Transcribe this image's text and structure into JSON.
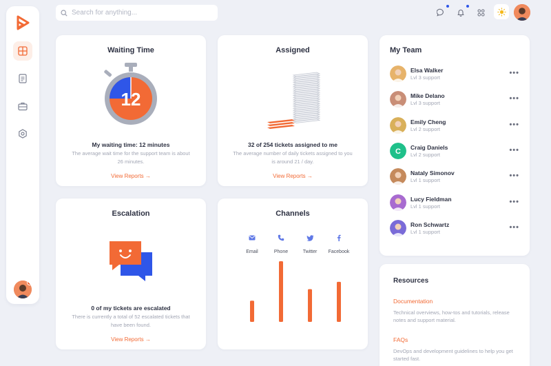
{
  "search": {
    "placeholder": "Search for anything..."
  },
  "waiting": {
    "title": "Waiting Time",
    "timer_value": "12",
    "headline": "My waiting time: 12 minutes",
    "description_line1": "The average wait time for the support team is about",
    "description_line2": "26 minutes.",
    "link": "View Reports"
  },
  "assigned": {
    "title": "Assigned",
    "headline": "32 of 254 tickets assigned to me",
    "description_line1": "The average number of daily tickets assigned to you",
    "description_line2": "is around 21 / day.",
    "link": "View Reports"
  },
  "escalation": {
    "title": "Escalation",
    "headline": "0 of my tickets are escalated",
    "description_line1": "There is currently a total of 52 escalated tickets that",
    "description_line2": "have been found.",
    "link": "View Reports"
  },
  "channels": {
    "title": "Channels",
    "items": [
      {
        "label": "Email",
        "icon": "mail-icon",
        "value": 0.35
      },
      {
        "label": "Phone",
        "icon": "phone-icon",
        "value": 1.0
      },
      {
        "label": "Twitter",
        "icon": "twitter-icon",
        "value": 0.54
      },
      {
        "label": "Facebook",
        "icon": "facebook-icon",
        "value": 0.66
      }
    ]
  },
  "team": {
    "title": "My Team",
    "members": [
      {
        "name": "Elsa Walker",
        "role": "Lvl 3 support",
        "avatar_color": "#e7b36a"
      },
      {
        "name": "Mike Delano",
        "role": "Lvl 3 support",
        "avatar_color": "#c98e77"
      },
      {
        "name": "Emily Cheng",
        "role": "Lvl 2 support",
        "avatar_color": "#d9b05a"
      },
      {
        "name": "Craig Daniels",
        "role": "Lvl 2 support",
        "avatar_color": "#1fc08a",
        "initial": "C"
      },
      {
        "name": "Nataly Simonov",
        "role": "Lvl 1 support",
        "avatar_color": "#c58a5c"
      },
      {
        "name": "Lucy Fieldman",
        "role": "Lvl 1 support",
        "avatar_color": "#a86bd0"
      },
      {
        "name": "Ron Schwartz",
        "role": "Lvl 1 support",
        "avatar_color": "#7a6bd8"
      }
    ]
  },
  "resources": {
    "title": "Resources",
    "items": [
      {
        "label": "Documentation",
        "description": "Technical overviews, how-tos and tutorials, release notes and support material."
      },
      {
        "label": "FAQs",
        "description": "DevOps and development guidelines to help you get started fast."
      }
    ]
  },
  "colors": {
    "accent": "#f26a35",
    "blue": "#2f56e8",
    "background": "#eef0f6"
  }
}
